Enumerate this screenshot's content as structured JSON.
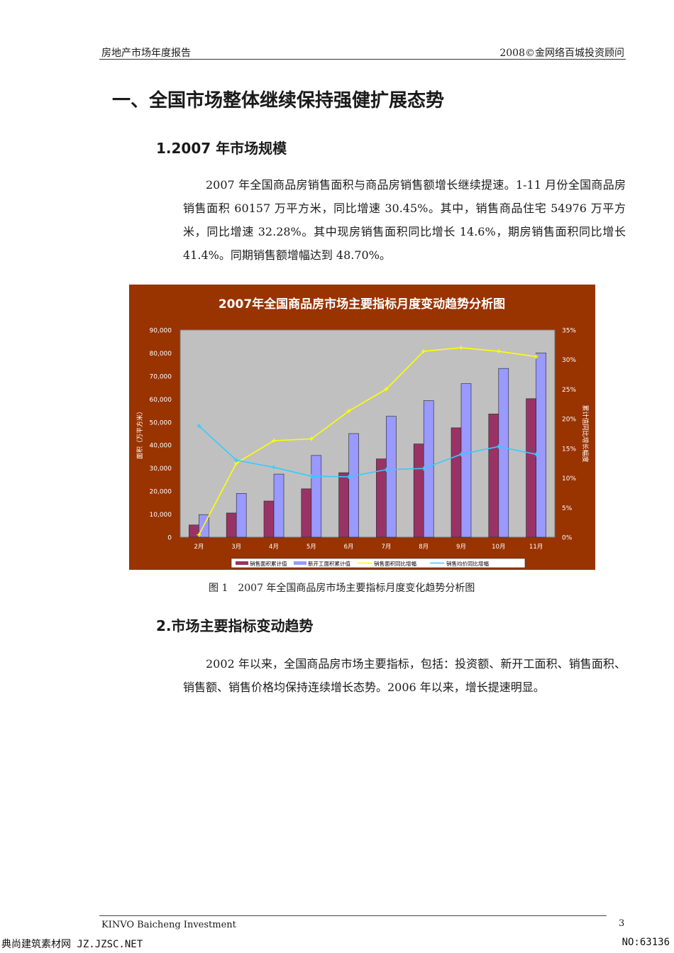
{
  "header": {
    "left": "房地产市场年度报告",
    "right": "2008©金网络百城投资顾问"
  },
  "section_title": "一、全国市场整体继续保持强健扩展态势",
  "sub1": {
    "title": "1.2007 年市场规模",
    "paragraph": "2007 年全国商品房销售面积与商品房销售额增长继续提速。1-11 月份全国商品房销售面积 60157 万平方米，同比增速 30.45%。其中，销售商品住宅 54976 万平方米，同比增速 32.28%。其中现房销售面积同比增长 14.6%，期房销售面积同比增长 41.4%。同期销售额增幅达到 48.70%。"
  },
  "figure_caption": "图 1　2007 年全国商品房市场主要指标月度变化趋势分析图",
  "sub2": {
    "title": "2.市场主要指标变动趋势",
    "paragraph": "2002 年以来，全国商品房市场主要指标，包括：投资额、新开工面积、销售面积、销售额、销售价格均保持连续增长态势。2006 年以来，增长提速明显。"
  },
  "footer": {
    "left": "KINVO Baicheng Investment",
    "page": "3"
  },
  "watermark": {
    "left": "典尚建筑素材网 JZ.JZSC.NET",
    "right": "NO:63136"
  },
  "colors": {
    "frame": "#993300",
    "plot_bg": "#c0c0c0",
    "bar_sales_area": "#993366",
    "bar_new_start": "#9999ff",
    "line_area_growth": "#ffff00",
    "line_price_growth": "#33ccff"
  },
  "chart_data": {
    "type": "bar",
    "title": "2007年全国商品房市场主要指标月度变动趋势分析图",
    "ylabel": "面积（万平方米）",
    "y2label": "累计值同比增长幅度",
    "categories": [
      "2月",
      "3月",
      "4月",
      "5月",
      "6月",
      "7月",
      "8月",
      "9月",
      "10月",
      "11月"
    ],
    "ylim": [
      0,
      90000
    ],
    "yticks": [
      "0",
      "10,000",
      "20,000",
      "30,000",
      "40,000",
      "50,000",
      "60,000",
      "70,000",
      "80,000",
      "90,000"
    ],
    "y2lim": [
      0,
      35
    ],
    "y2ticks": [
      "0%",
      "5%",
      "10%",
      "15%",
      "20%",
      "25%",
      "30%",
      "35%"
    ],
    "series": [
      {
        "name": "销售面积累计值",
        "kind": "bar",
        "axis": "left",
        "color": "#993366",
        "values": [
          5300,
          10500,
          15700,
          21000,
          28000,
          34000,
          40500,
          47500,
          53500,
          60157
        ]
      },
      {
        "name": "新开工面积累计值",
        "kind": "bar",
        "axis": "left",
        "color": "#9999ff",
        "values": [
          9800,
          19000,
          27400,
          35500,
          45000,
          52500,
          59300,
          66700,
          73300,
          80000
        ]
      },
      {
        "name": "销售面积同比增幅",
        "kind": "line",
        "axis": "right",
        "color": "#ffff00",
        "values": [
          0.4,
          12.5,
          16.3,
          16.6,
          21.3,
          25.0,
          31.4,
          32.0,
          31.4,
          30.5
        ]
      },
      {
        "name": "销售均价同比增幅",
        "kind": "line",
        "axis": "right",
        "color": "#33ccff",
        "values": [
          18.8,
          13.0,
          11.8,
          10.3,
          10.2,
          11.4,
          11.6,
          14.0,
          15.3,
          14.0
        ]
      }
    ],
    "grid": false,
    "legend": "bottom"
  }
}
